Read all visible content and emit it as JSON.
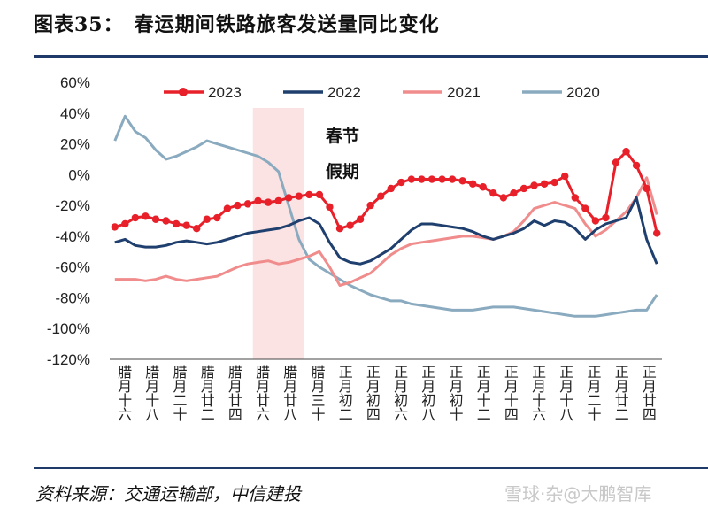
{
  "header": {
    "title": "图表35：　春运期间铁路旅客发送量同比变化"
  },
  "footer": {
    "source": "资料来源：交通运输部，中信建投",
    "watermark": "雪球·杂@大鹏智库"
  },
  "chart_data": {
    "type": "line",
    "ylim": [
      -120,
      60
    ],
    "y_ticks": [
      "60%",
      "40%",
      "20%",
      "0%",
      "-20%",
      "-40%",
      "-60%",
      "-80%",
      "-100%",
      "-120%"
    ],
    "y_tick_values": [
      60,
      40,
      20,
      0,
      -20,
      -40,
      -60,
      -80,
      -100,
      -120
    ],
    "x_tick_labels": [
      "腊月十六",
      "腊月十八",
      "腊月二十",
      "腊月廿二",
      "腊月廿四",
      "腊月廿六",
      "腊月廿八",
      "腊月三十",
      "正月初二",
      "正月初四",
      "正月初六",
      "正月初八",
      "正月初十",
      "正月十二",
      "正月十四",
      "正月十六",
      "正月十八",
      "正月二十",
      "正月廿二",
      "正月廿四"
    ],
    "annotation": {
      "label_line1": "春节",
      "label_line2": "假期",
      "x_start": 14,
      "x_end": 19
    },
    "legend": {
      "position": "top"
    },
    "series": [
      {
        "name": "2023",
        "color": "#e8202a",
        "markers": true,
        "values": [
          -34,
          -32,
          -28,
          -27,
          -29,
          -30,
          -32,
          -33,
          -35,
          -29,
          -28,
          -22,
          -20,
          -19,
          -17,
          -18,
          -17,
          -15,
          -14,
          -13,
          -13,
          -21,
          -35,
          -33,
          -29,
          -20,
          -14,
          -9,
          -5,
          -3,
          -3,
          -3,
          -3,
          -3,
          -4,
          -6,
          -8,
          -12,
          -15,
          -12,
          -9,
          -7,
          -6,
          -5,
          -1,
          -15,
          -22,
          -30,
          -28,
          8,
          15,
          6,
          -9,
          -38
        ]
      },
      {
        "name": "2022",
        "color": "#1f3f6e",
        "markers": false,
        "values": [
          -44,
          -42,
          -46,
          -47,
          -47,
          -46,
          -44,
          -43,
          -44,
          -45,
          -44,
          -42,
          -40,
          -38,
          -37,
          -36,
          -35,
          -33,
          -30,
          -28,
          -32,
          -44,
          -54,
          -57,
          -58,
          -56,
          -52,
          -48,
          -42,
          -36,
          -32,
          -32,
          -33,
          -34,
          -35,
          -37,
          -40,
          -42,
          -40,
          -38,
          -35,
          -30,
          -33,
          -30,
          -31,
          -35,
          -42,
          -36,
          -32,
          -30,
          -28,
          -15,
          -42,
          -58
        ]
      },
      {
        "name": "2021",
        "color": "#f08c8c",
        "markers": false,
        "values": [
          -68,
          -68,
          -68,
          -69,
          -68,
          -66,
          -68,
          -69,
          -68,
          -67,
          -66,
          -63,
          -60,
          -58,
          -57,
          -56,
          -58,
          -57,
          -55,
          -53,
          -50,
          -60,
          -72,
          -70,
          -67,
          -64,
          -58,
          -52,
          -48,
          -45,
          -44,
          -43,
          -42,
          -41,
          -40,
          -40,
          -41,
          -42,
          -40,
          -37,
          -30,
          -22,
          -20,
          -18,
          -20,
          -22,
          -32,
          -40,
          -36,
          -30,
          -24,
          -15,
          -2,
          -26
        ]
      },
      {
        "name": "2020",
        "color": "#8aaabf",
        "markers": false,
        "values": [
          22,
          38,
          28,
          24,
          16,
          10,
          12,
          15,
          18,
          22,
          20,
          18,
          16,
          14,
          12,
          8,
          2,
          -20,
          -42,
          -55,
          -60,
          -64,
          -68,
          -72,
          -75,
          -78,
          -80,
          -82,
          -82,
          -84,
          -85,
          -86,
          -87,
          -88,
          -88,
          -88,
          -87,
          -86,
          -86,
          -86,
          -87,
          -88,
          -89,
          -90,
          -91,
          -92,
          -92,
          -92,
          -91,
          -90,
          -89,
          -88,
          -88,
          -78
        ]
      }
    ]
  }
}
